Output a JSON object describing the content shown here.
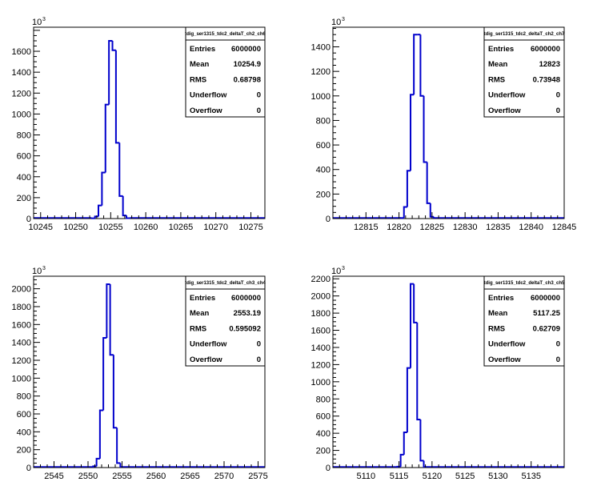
{
  "chart_data": [
    {
      "type": "bar",
      "title": "tdig_ser1315_tdc2_deltaT_ch2_ch6",
      "y_exponent": "10",
      "y_exponent_power": "3",
      "xlim": [
        10244,
        10277
      ],
      "ylim": [
        0,
        1830
      ],
      "x_ticks": [
        10245,
        10250,
        10255,
        10260,
        10265,
        10270,
        10275
      ],
      "y_ticks": [
        0,
        200,
        400,
        600,
        800,
        1000,
        1200,
        1400,
        1600
      ],
      "bin_width": 0.5,
      "bins": [
        {
          "x": 10252.5,
          "value": 3
        },
        {
          "x": 10253.0,
          "value": 20
        },
        {
          "x": 10253.5,
          "value": 125
        },
        {
          "x": 10254.0,
          "value": 440
        },
        {
          "x": 10254.5,
          "value": 1090
        },
        {
          "x": 10255.0,
          "value": 1700
        },
        {
          "x": 10255.5,
          "value": 1610
        },
        {
          "x": 10256.0,
          "value": 725
        },
        {
          "x": 10256.5,
          "value": 215
        },
        {
          "x": 10257.0,
          "value": 30
        },
        {
          "x": 10257.5,
          "value": 4
        }
      ],
      "stats": [
        {
          "label": "Entries",
          "value": "6000000"
        },
        {
          "label": "Mean",
          "value": "10254.9"
        },
        {
          "label": "RMS",
          "value": "0.68798"
        },
        {
          "label": "Underflow",
          "value": "0"
        },
        {
          "label": "Overflow",
          "value": "0"
        }
      ]
    },
    {
      "type": "bar",
      "title": "tdig_ser1315_tdc2_deltaT_ch2_ch7",
      "y_exponent": "10",
      "y_exponent_power": "3",
      "xlim": [
        12810,
        12845
      ],
      "ylim": [
        0,
        1560
      ],
      "x_ticks": [
        12815,
        12820,
        12825,
        12830,
        12835,
        12840,
        12845
      ],
      "y_ticks": [
        0,
        200,
        400,
        600,
        800,
        1000,
        1200,
        1400
      ],
      "bin_width": 0.5,
      "bins": [
        {
          "x": 12820.5,
          "value": 5
        },
        {
          "x": 12821.0,
          "value": 95
        },
        {
          "x": 12821.5,
          "value": 390
        },
        {
          "x": 12822.0,
          "value": 1010
        },
        {
          "x": 12822.5,
          "value": 1500
        },
        {
          "x": 12823.0,
          "value": 1500
        },
        {
          "x": 12823.5,
          "value": 1000
        },
        {
          "x": 12824.0,
          "value": 460
        },
        {
          "x": 12824.5,
          "value": 125
        },
        {
          "x": 12825.0,
          "value": 15
        }
      ],
      "stats": [
        {
          "label": "Entries",
          "value": "6000000"
        },
        {
          "label": "Mean",
          "value": "12823"
        },
        {
          "label": "RMS",
          "value": "0.73948"
        },
        {
          "label": "Underflow",
          "value": "0"
        },
        {
          "label": "Overflow",
          "value": "0"
        }
      ]
    },
    {
      "type": "bar",
      "title": "tdig_ser1315_tdc2_deltaT_ch3_ch4",
      "y_exponent": "10",
      "y_exponent_power": "3",
      "xlim": [
        2542,
        2576
      ],
      "ylim": [
        0,
        2140
      ],
      "x_ticks": [
        2545,
        2550,
        2555,
        2560,
        2565,
        2570,
        2575
      ],
      "y_ticks": [
        0,
        200,
        400,
        600,
        800,
        1000,
        1200,
        1400,
        1600,
        1800,
        2000
      ],
      "bin_width": 0.5,
      "bins": [
        {
          "x": 2551.0,
          "value": 15
        },
        {
          "x": 2551.5,
          "value": 100
        },
        {
          "x": 2552.0,
          "value": 640
        },
        {
          "x": 2552.5,
          "value": 1450
        },
        {
          "x": 2553.0,
          "value": 2050
        },
        {
          "x": 2553.5,
          "value": 1260
        },
        {
          "x": 2554.0,
          "value": 445
        },
        {
          "x": 2554.5,
          "value": 50
        }
      ],
      "stats": [
        {
          "label": "Entries",
          "value": "6000000"
        },
        {
          "label": "Mean",
          "value": "2553.19"
        },
        {
          "label": "RMS",
          "value": "0.595092"
        },
        {
          "label": "Underflow",
          "value": "0"
        },
        {
          "label": "Overflow",
          "value": "0"
        }
      ]
    },
    {
      "type": "bar",
      "title": "tdig_ser1315_tdc2_deltaT_ch3_ch5",
      "y_exponent": "10",
      "y_exponent_power": "3",
      "xlim": [
        5105,
        5140
      ],
      "ylim": [
        0,
        2230
      ],
      "x_ticks": [
        5110,
        5115,
        5120,
        5125,
        5130,
        5135
      ],
      "y_ticks": [
        0,
        200,
        400,
        600,
        800,
        1000,
        1200,
        1400,
        1600,
        1800,
        2000,
        2200
      ],
      "bin_width": 0.5,
      "bins": [
        {
          "x": 5115.0,
          "value": 10
        },
        {
          "x": 5115.5,
          "value": 150
        },
        {
          "x": 5116.0,
          "value": 410
        },
        {
          "x": 5116.5,
          "value": 1160
        },
        {
          "x": 5117.0,
          "value": 2140
        },
        {
          "x": 5117.5,
          "value": 1690
        },
        {
          "x": 5118.0,
          "value": 560
        },
        {
          "x": 5118.5,
          "value": 80
        }
      ],
      "stats": [
        {
          "label": "Entries",
          "value": "6000000"
        },
        {
          "label": "Mean",
          "value": "5117.25"
        },
        {
          "label": "RMS",
          "value": "0.62709"
        },
        {
          "label": "Underflow",
          "value": "0"
        },
        {
          "label": "Overflow",
          "value": "0"
        }
      ]
    }
  ],
  "colors": {
    "histogram_line": "#0000cc",
    "axis": "#000000",
    "background": "#ffffff"
  }
}
